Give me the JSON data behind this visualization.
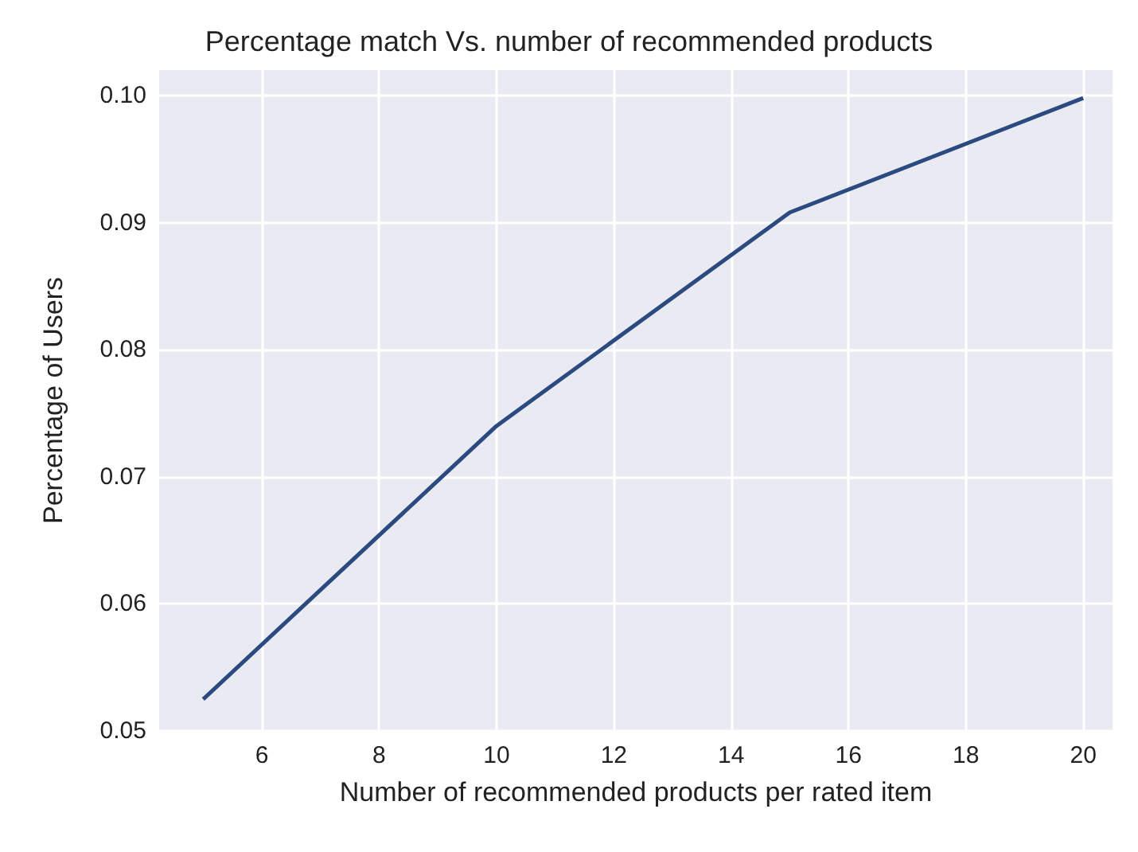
{
  "chart_data": {
    "type": "line",
    "title": "Percentage match Vs. number of recommended products",
    "xlabel": "Number of recommended products per rated item",
    "ylabel": "Percentage of Users",
    "x": [
      5,
      10,
      15,
      20
    ],
    "series": [
      {
        "color": "#2b4a80",
        "values": [
          0.0525,
          0.074,
          0.0908,
          0.0998
        ]
      }
    ],
    "xlim": [
      4.25,
      20.5
    ],
    "xticks": [
      6,
      8,
      10,
      12,
      14,
      16,
      18,
      20
    ],
    "ylim": [
      0.05,
      0.102
    ],
    "yticks": [
      0.05,
      0.06,
      0.07,
      0.08,
      0.09,
      {
        "value": 0.1,
        "label": "0.10"
      }
    ],
    "grid": true,
    "marker": "none",
    "line_style": "solid"
  }
}
